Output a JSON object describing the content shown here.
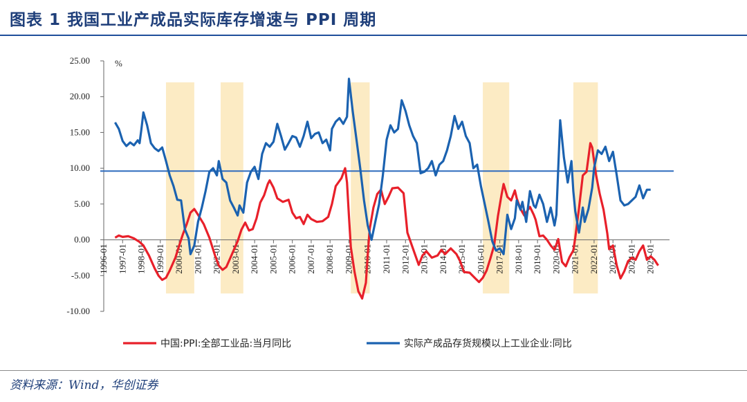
{
  "header": {
    "title": "图表 1   我国工业产成品实际库存增速与 PPI 周期"
  },
  "source": "资料来源：Wind，华创证券",
  "chart_data": {
    "type": "line",
    "ylabel": "%",
    "ylim": [
      -10,
      25
    ],
    "yticks": [
      "25.00",
      "20.00",
      "15.00",
      "10.00",
      "5.00",
      "0.00",
      "-5.00",
      "-10.00"
    ],
    "ytick_values": [
      25,
      20,
      15,
      10,
      5,
      0,
      -5,
      -10
    ],
    "xticks": [
      "1996-01",
      "1997-01",
      "1998-01",
      "1999-01",
      "2000-01",
      "2001-01",
      "2002-01",
      "2003-01",
      "2004-01",
      "2005-01",
      "2006-01",
      "2007-01",
      "2008-01",
      "2009-01",
      "2010-01",
      "2011-01",
      "2012-01",
      "2013-01",
      "2014-01",
      "2015-01",
      "2016-01",
      "2017-01",
      "2018-01",
      "2019-01",
      "2020-01",
      "2021-01",
      "2022-01",
      "2023-01",
      "2024-01",
      "2025-01"
    ],
    "xrange": [
      1996.0,
      2026.0
    ],
    "reference_line": 9.6,
    "shaded_periods": [
      [
        1999.3,
        2000.8
      ],
      [
        2002.2,
        2003.4
      ],
      [
        2009.1,
        2010.1
      ],
      [
        2016.1,
        2017.5
      ],
      [
        2020.9,
        2022.2
      ]
    ],
    "colors": {
      "ppi": "#e8202a",
      "inventory": "#1b62b0",
      "shade": "#fbe4b0",
      "refline": "#2e6bbd"
    },
    "series": [
      {
        "name": "中国:PPI:全部工业品:当月同比",
        "key": "ppi",
        "points": [
          [
            1996.6,
            0.3
          ],
          [
            1996.8,
            0.6
          ],
          [
            1997.0,
            0.4
          ],
          [
            1997.3,
            0.5
          ],
          [
            1997.6,
            0.2
          ],
          [
            1997.9,
            -0.3
          ],
          [
            1998.1,
            -0.8
          ],
          [
            1998.4,
            -2.2
          ],
          [
            1998.7,
            -4.0
          ],
          [
            1998.9,
            -5.0
          ],
          [
            1999.1,
            -5.6
          ],
          [
            1999.3,
            -5.3
          ],
          [
            1999.5,
            -4.3
          ],
          [
            1999.8,
            -2.5
          ],
          [
            2000.0,
            -0.8
          ],
          [
            2000.2,
            0.8
          ],
          [
            2000.4,
            2.2
          ],
          [
            2000.6,
            3.8
          ],
          [
            2000.8,
            4.3
          ],
          [
            2001.0,
            3.5
          ],
          [
            2001.3,
            2.2
          ],
          [
            2001.6,
            0.3
          ],
          [
            2001.9,
            -2.2
          ],
          [
            2002.1,
            -3.6
          ],
          [
            2002.3,
            -4.2
          ],
          [
            2002.5,
            -3.8
          ],
          [
            2002.7,
            -2.6
          ],
          [
            2002.9,
            -1.4
          ],
          [
            2003.1,
            -0.2
          ],
          [
            2003.3,
            1.4
          ],
          [
            2003.5,
            2.4
          ],
          [
            2003.7,
            1.3
          ],
          [
            2003.9,
            1.5
          ],
          [
            2004.1,
            3.0
          ],
          [
            2004.3,
            5.2
          ],
          [
            2004.5,
            6.2
          ],
          [
            2004.7,
            7.8
          ],
          [
            2004.8,
            8.3
          ],
          [
            2005.0,
            7.3
          ],
          [
            2005.2,
            5.8
          ],
          [
            2005.5,
            5.3
          ],
          [
            2005.8,
            5.6
          ],
          [
            2006.0,
            3.8
          ],
          [
            2006.2,
            3.0
          ],
          [
            2006.4,
            3.2
          ],
          [
            2006.6,
            2.2
          ],
          [
            2006.8,
            3.5
          ],
          [
            2007.0,
            2.9
          ],
          [
            2007.3,
            2.5
          ],
          [
            2007.6,
            2.6
          ],
          [
            2007.9,
            3.2
          ],
          [
            2008.1,
            5.0
          ],
          [
            2008.3,
            7.5
          ],
          [
            2008.6,
            8.6
          ],
          [
            2008.8,
            10.0
          ],
          [
            2008.9,
            8.0
          ],
          [
            2009.0,
            3.3
          ],
          [
            2009.1,
            -1.0
          ],
          [
            2009.3,
            -4.5
          ],
          [
            2009.5,
            -7.2
          ],
          [
            2009.7,
            -8.2
          ],
          [
            2009.9,
            -6.0
          ],
          [
            2010.0,
            -2.0
          ],
          [
            2010.1,
            1.5
          ],
          [
            2010.3,
            4.5
          ],
          [
            2010.5,
            6.4
          ],
          [
            2010.7,
            7.0
          ],
          [
            2010.9,
            5.0
          ],
          [
            2011.1,
            6.0
          ],
          [
            2011.3,
            7.2
          ],
          [
            2011.6,
            7.3
          ],
          [
            2011.9,
            6.5
          ],
          [
            2012.1,
            1.0
          ],
          [
            2012.3,
            -0.5
          ],
          [
            2012.5,
            -2.0
          ],
          [
            2012.7,
            -3.5
          ],
          [
            2012.9,
            -2.2
          ],
          [
            2013.1,
            -1.6
          ],
          [
            2013.4,
            -2.5
          ],
          [
            2013.7,
            -2.2
          ],
          [
            2013.9,
            -1.4
          ],
          [
            2014.1,
            -2.0
          ],
          [
            2014.4,
            -1.2
          ],
          [
            2014.7,
            -2.0
          ],
          [
            2014.9,
            -3.0
          ],
          [
            2015.1,
            -4.5
          ],
          [
            2015.4,
            -4.6
          ],
          [
            2015.7,
            -5.4
          ],
          [
            2015.9,
            -5.9
          ],
          [
            2016.1,
            -5.3
          ],
          [
            2016.3,
            -4.3
          ],
          [
            2016.5,
            -2.6
          ],
          [
            2016.7,
            -0.8
          ],
          [
            2016.9,
            3.3
          ],
          [
            2017.1,
            6.4
          ],
          [
            2017.2,
            7.8
          ],
          [
            2017.4,
            6.0
          ],
          [
            2017.6,
            5.5
          ],
          [
            2017.8,
            6.9
          ],
          [
            2017.9,
            5.8
          ],
          [
            2018.1,
            4.3
          ],
          [
            2018.3,
            3.4
          ],
          [
            2018.6,
            4.6
          ],
          [
            2018.8,
            3.5
          ],
          [
            2018.9,
            2.8
          ],
          [
            2019.1,
            0.5
          ],
          [
            2019.3,
            0.6
          ],
          [
            2019.5,
            0.0
          ],
          [
            2019.7,
            -0.8
          ],
          [
            2019.9,
            -1.4
          ],
          [
            2020.1,
            0.1
          ],
          [
            2020.3,
            -3.1
          ],
          [
            2020.5,
            -3.7
          ],
          [
            2020.7,
            -2.4
          ],
          [
            2020.9,
            -1.5
          ],
          [
            2021.0,
            0.3
          ],
          [
            2021.2,
            4.4
          ],
          [
            2021.4,
            9.0
          ],
          [
            2021.6,
            9.5
          ],
          [
            2021.8,
            13.5
          ],
          [
            2021.9,
            12.9
          ],
          [
            2022.1,
            9.1
          ],
          [
            2022.3,
            6.4
          ],
          [
            2022.5,
            4.2
          ],
          [
            2022.7,
            0.9
          ],
          [
            2022.8,
            -1.3
          ],
          [
            2023.0,
            -0.8
          ],
          [
            2023.2,
            -3.6
          ],
          [
            2023.4,
            -5.4
          ],
          [
            2023.6,
            -4.4
          ],
          [
            2023.8,
            -3.0
          ],
          [
            2024.0,
            -2.5
          ],
          [
            2024.2,
            -2.8
          ],
          [
            2024.4,
            -1.6
          ],
          [
            2024.6,
            -0.8
          ],
          [
            2024.8,
            -2.8
          ],
          [
            2025.0,
            -2.3
          ],
          [
            2025.2,
            -2.8
          ],
          [
            2025.4,
            -3.6
          ]
        ]
      },
      {
        "name": "实际产成品存货规模以上工业企业:同比",
        "key": "inventory",
        "points": [
          [
            1996.6,
            16.4
          ],
          [
            1996.8,
            15.5
          ],
          [
            1997.0,
            13.8
          ],
          [
            1997.2,
            13.1
          ],
          [
            1997.4,
            13.6
          ],
          [
            1997.6,
            13.2
          ],
          [
            1997.8,
            13.9
          ],
          [
            1997.9,
            13.5
          ],
          [
            1998.0,
            15.5
          ],
          [
            1998.1,
            17.8
          ],
          [
            1998.3,
            16.0
          ],
          [
            1998.5,
            13.5
          ],
          [
            1998.7,
            12.8
          ],
          [
            1998.9,
            12.4
          ],
          [
            1999.1,
            12.9
          ],
          [
            1999.3,
            11.0
          ],
          [
            1999.5,
            9.0
          ],
          [
            1999.7,
            7.5
          ],
          [
            1999.9,
            5.6
          ],
          [
            2000.1,
            5.5
          ],
          [
            2000.3,
            1.5
          ],
          [
            2000.5,
            0.2
          ],
          [
            2000.6,
            -2.0
          ],
          [
            2000.8,
            -0.8
          ],
          [
            2001.0,
            2.5
          ],
          [
            2001.2,
            4.5
          ],
          [
            2001.4,
            6.8
          ],
          [
            2001.6,
            9.5
          ],
          [
            2001.8,
            10.0
          ],
          [
            2002.0,
            9.0
          ],
          [
            2002.1,
            11.0
          ],
          [
            2002.3,
            8.5
          ],
          [
            2002.5,
            8.0
          ],
          [
            2002.7,
            5.5
          ],
          [
            2002.9,
            4.5
          ],
          [
            2003.1,
            3.4
          ],
          [
            2003.2,
            4.8
          ],
          [
            2003.4,
            3.8
          ],
          [
            2003.6,
            8.0
          ],
          [
            2003.8,
            9.5
          ],
          [
            2004.0,
            10.2
          ],
          [
            2004.2,
            8.5
          ],
          [
            2004.4,
            12.0
          ],
          [
            2004.6,
            13.5
          ],
          [
            2004.8,
            13.0
          ],
          [
            2005.0,
            13.7
          ],
          [
            2005.2,
            16.2
          ],
          [
            2005.4,
            14.5
          ],
          [
            2005.6,
            12.6
          ],
          [
            2005.8,
            13.5
          ],
          [
            2006.0,
            14.5
          ],
          [
            2006.2,
            14.3
          ],
          [
            2006.4,
            13.0
          ],
          [
            2006.6,
            14.5
          ],
          [
            2006.8,
            16.5
          ],
          [
            2007.0,
            14.2
          ],
          [
            2007.2,
            14.8
          ],
          [
            2007.4,
            15.0
          ],
          [
            2007.6,
            13.5
          ],
          [
            2007.8,
            14.0
          ],
          [
            2008.0,
            12.5
          ],
          [
            2008.1,
            15.5
          ],
          [
            2008.3,
            16.5
          ],
          [
            2008.5,
            17.0
          ],
          [
            2008.7,
            16.2
          ],
          [
            2008.9,
            17.2
          ],
          [
            2009.0,
            22.5
          ],
          [
            2009.2,
            18.0
          ],
          [
            2009.4,
            14.0
          ],
          [
            2009.6,
            10.0
          ],
          [
            2009.8,
            5.5
          ],
          [
            2010.0,
            2.0
          ],
          [
            2010.2,
            0.0
          ],
          [
            2010.4,
            2.5
          ],
          [
            2010.6,
            5.0
          ],
          [
            2010.8,
            9.0
          ],
          [
            2011.0,
            14.0
          ],
          [
            2011.2,
            16.0
          ],
          [
            2011.4,
            15.0
          ],
          [
            2011.6,
            15.5
          ],
          [
            2011.8,
            19.5
          ],
          [
            2012.0,
            18.0
          ],
          [
            2012.2,
            16.0
          ],
          [
            2012.4,
            14.5
          ],
          [
            2012.6,
            13.5
          ],
          [
            2012.8,
            9.3
          ],
          [
            2013.0,
            9.5
          ],
          [
            2013.2,
            10.0
          ],
          [
            2013.4,
            11.0
          ],
          [
            2013.6,
            9.0
          ],
          [
            2013.8,
            10.5
          ],
          [
            2014.0,
            11.0
          ],
          [
            2014.2,
            12.5
          ],
          [
            2014.4,
            14.5
          ],
          [
            2014.6,
            17.3
          ],
          [
            2014.8,
            15.5
          ],
          [
            2015.0,
            16.5
          ],
          [
            2015.2,
            14.5
          ],
          [
            2015.4,
            13.5
          ],
          [
            2015.6,
            10.0
          ],
          [
            2015.8,
            10.5
          ],
          [
            2016.0,
            7.5
          ],
          [
            2016.2,
            5.0
          ],
          [
            2016.4,
            2.5
          ],
          [
            2016.6,
            -0.2
          ],
          [
            2016.8,
            -1.5
          ],
          [
            2017.0,
            -1.2
          ],
          [
            2017.2,
            -2.0
          ],
          [
            2017.4,
            3.5
          ],
          [
            2017.6,
            1.5
          ],
          [
            2017.8,
            3.0
          ],
          [
            2017.9,
            5.5
          ],
          [
            2018.1,
            4.2
          ],
          [
            2018.2,
            5.3
          ],
          [
            2018.4,
            2.5
          ],
          [
            2018.6,
            6.8
          ],
          [
            2018.8,
            4.8
          ],
          [
            2018.9,
            4.5
          ],
          [
            2019.1,
            6.3
          ],
          [
            2019.3,
            5.0
          ],
          [
            2019.5,
            2.5
          ],
          [
            2019.7,
            4.5
          ],
          [
            2019.9,
            2.0
          ],
          [
            2020.0,
            3.5
          ],
          [
            2020.2,
            16.7
          ],
          [
            2020.4,
            11.5
          ],
          [
            2020.6,
            8.0
          ],
          [
            2020.8,
            11.0
          ],
          [
            2020.9,
            6.8
          ],
          [
            2021.0,
            4.0
          ],
          [
            2021.2,
            1.0
          ],
          [
            2021.4,
            4.5
          ],
          [
            2021.5,
            2.5
          ],
          [
            2021.7,
            4.3
          ],
          [
            2021.9,
            7.3
          ],
          [
            2022.0,
            10.0
          ],
          [
            2022.2,
            12.5
          ],
          [
            2022.4,
            12.0
          ],
          [
            2022.6,
            13.0
          ],
          [
            2022.8,
            11.0
          ],
          [
            2023.0,
            12.3
          ],
          [
            2023.2,
            9.0
          ],
          [
            2023.4,
            5.5
          ],
          [
            2023.6,
            4.8
          ],
          [
            2023.8,
            5.0
          ],
          [
            2024.0,
            5.5
          ],
          [
            2024.2,
            6.0
          ],
          [
            2024.4,
            7.6
          ],
          [
            2024.6,
            5.8
          ],
          [
            2024.8,
            7.0
          ],
          [
            2025.0,
            7.0
          ]
        ]
      }
    ],
    "legend": [
      "中国:PPI:全部工业品:当月同比",
      "实际产成品存货规模以上工业企业:同比"
    ]
  }
}
